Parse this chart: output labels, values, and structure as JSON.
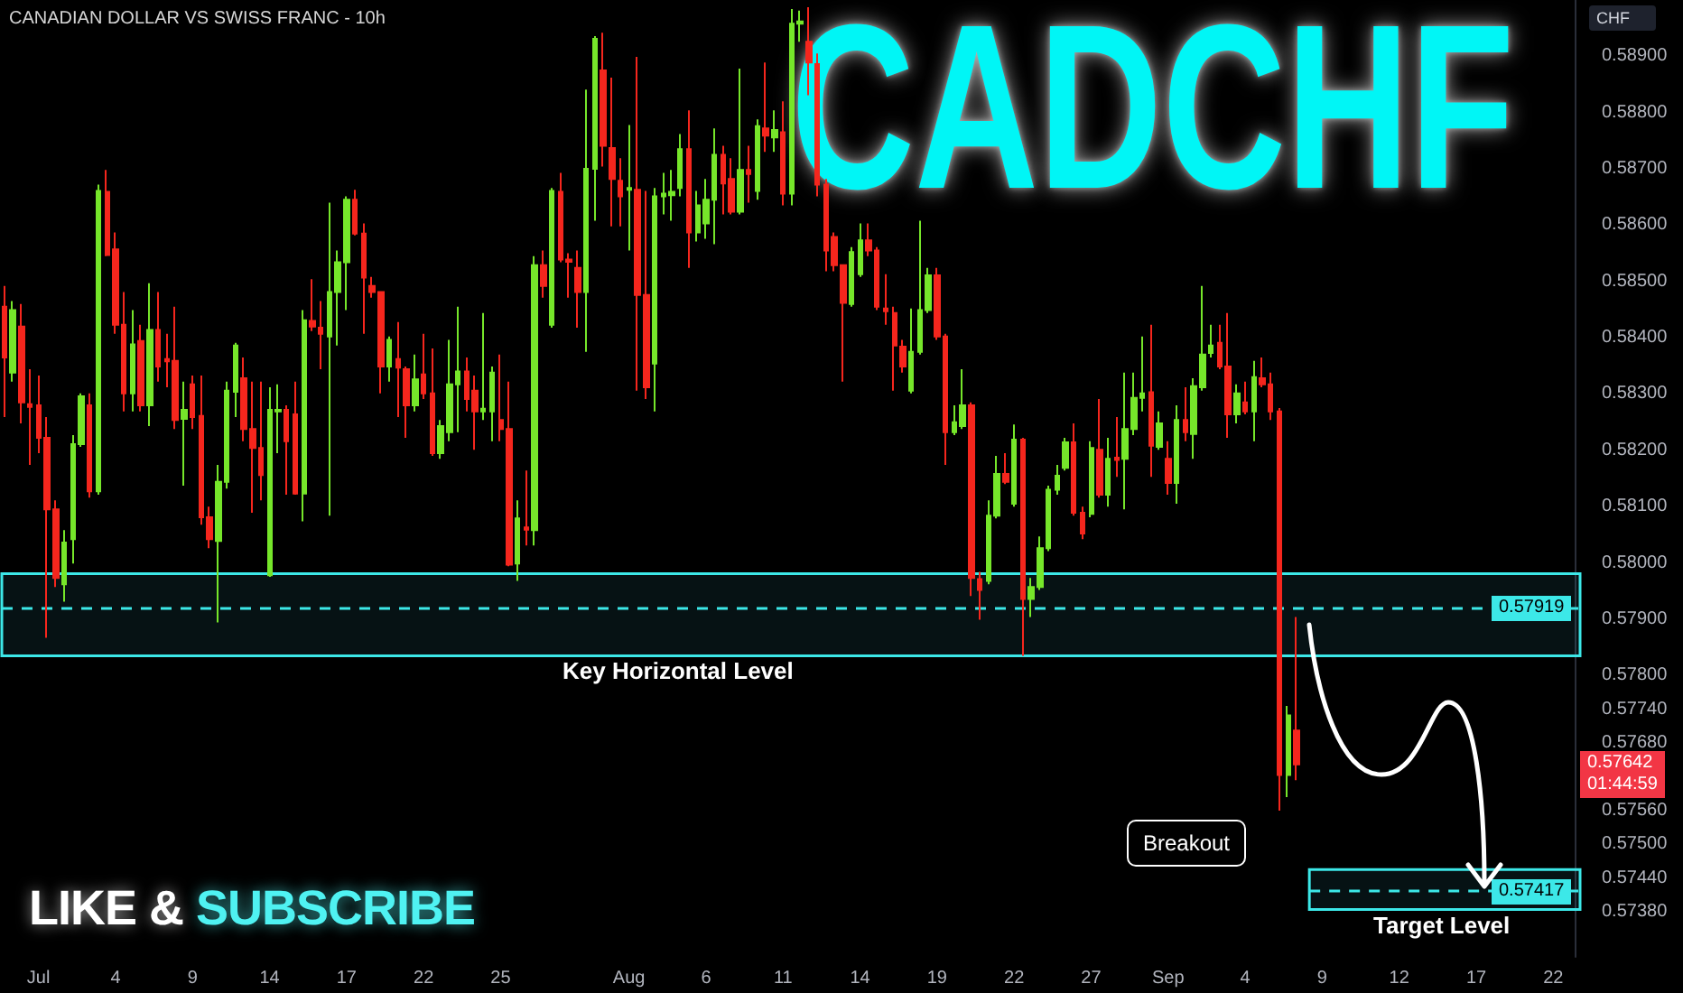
{
  "chart_data": {
    "type": "candlestick",
    "title": "CADCHF",
    "subtitle": "CANADIAN DOLLAR VS SWISS FRANC - 10h",
    "ylabel": "CHF",
    "colors": [
      "#f5261d",
      "#76e62a",
      "#f5261d",
      "#f5261d",
      "#f5261d",
      "#f5261d",
      "#f5261d",
      "#76e62a",
      "#76e62a",
      "#76e62a",
      "#f5261d",
      "#76e62a",
      "#f5261d",
      "#f5261d",
      "#f5261d",
      "#76e62a",
      "#f5261d",
      "#76e62a",
      "#f5261d",
      "#f5261d",
      "#f5261d",
      "#76e62a",
      "#f5261d",
      "#f5261d",
      "#f5261d",
      "#76e62a",
      "#76e62a",
      "#76e62a",
      "#f5261d",
      "#f5261d",
      "#f5261d",
      "#76e62a",
      "#76e62a",
      "#f5261d",
      "#f5261d",
      "#76e62a",
      "#f5261d",
      "#f5261d",
      "#76e62a",
      "#76e62a",
      "#76e62a",
      "#f5261d",
      "#f5261d",
      "#f5261d",
      "#f5261d",
      "#76e62a",
      "#f5261d",
      "#f5261d",
      "#76e62a",
      "#f5261d",
      "#f5261d",
      "#76e62a",
      "#76e62a",
      "#76e62a",
      "#f5261d",
      "#f5261d",
      "#76e62a",
      "#76e62a",
      "#f5261d",
      "#f5261d",
      "#76e62a",
      "#f5261d",
      "#76e62a",
      "#f5261d",
      "#76e62a",
      "#f5261d",
      "#f5261d",
      "#f5261d",
      "#76e62a",
      "#76e62a",
      "#f5261d",
      "#f5261d",
      "#f5261d",
      "#76e62a",
      "#f5261d",
      "#f5261d",
      "#76e62a",
      "#76e62a",
      "#76e62a",
      "#76e62a",
      "#f5261d",
      "#76e62a",
      "#76e62a",
      "#76e62a",
      "#f5261d",
      "#f5261d",
      "#76e62a",
      "#f5261d",
      "#76e62a",
      "#f5261d",
      "#76e62a",
      "#f5261d",
      "#76e62a",
      "#76e62a",
      "#f5261d",
      "#f5261d",
      "#f5261d",
      "#f5261d",
      "#f5261d",
      "#76e62a",
      "#76e62a",
      "#f5261d",
      "#f5261d",
      "#f5261d",
      "#f5261d",
      "#f5261d",
      "#76e62a",
      "#76e62a",
      "#76e62a",
      "#f5261d",
      "#f5261d",
      "#76e62a",
      "#76e62a",
      "#f5261d",
      "#f5261d",
      "#76e62a",
      "#76e62a",
      "#f5261d",
      "#76e62a",
      "#f5261d",
      "#76e62a",
      "#76e62a",
      "#76e62a",
      "#76e62a",
      "#76e62a",
      "#f5261d",
      "#f5261d",
      "#76e62a",
      "#f5261d",
      "#76e62a",
      "#f5261d",
      "#76e62a",
      "#76e62a",
      "#76e62a",
      "#f5261d",
      "#76e62a",
      "#f5261d",
      "#76e62a",
      "#f5261d",
      "#76e62a",
      "#76e62a",
      "#76e62a",
      "#f5261d",
      "#f5261d",
      "#76e62a",
      "#f5261d",
      "#76e62a",
      "#f5261d",
      "#f5261d",
      "#f5261d",
      "#76e62a",
      "#f5261d",
      null,
      null,
      null,
      null,
      null,
      null,
      null,
      null,
      null,
      null,
      null,
      null,
      null,
      null,
      null,
      null,
      null,
      null,
      null,
      null,
      null,
      null,
      null,
      null,
      null,
      null,
      null,
      null,
      null,
      null,
      null,
      null
    ],
    "grid": false,
    "ylim": [
      0.573,
      0.59
    ],
    "yticks": [
      {
        "value": 0.589,
        "label": "0.58900"
      },
      {
        "value": 0.588,
        "label": "0.58800"
      },
      {
        "value": 0.587,
        "label": "0.58700"
      },
      {
        "value": 0.586,
        "label": "0.58600"
      },
      {
        "value": 0.585,
        "label": "0.58500"
      },
      {
        "value": 0.584,
        "label": "0.58400"
      },
      {
        "value": 0.583,
        "label": "0.58300"
      },
      {
        "value": 0.582,
        "label": "0.58200"
      },
      {
        "value": 0.581,
        "label": "0.58100"
      },
      {
        "value": 0.58,
        "label": "0.58000"
      },
      {
        "value": 0.579,
        "label": "0.57900"
      },
      {
        "value": 0.578,
        "label": "0.57800"
      },
      {
        "value": 0.5774,
        "label": "0.57740"
      },
      {
        "value": 0.5768,
        "label": "0.57680"
      },
      {
        "value": 0.5756,
        "label": "0.57560"
      },
      {
        "value": 0.575,
        "label": "0.57500"
      },
      {
        "value": 0.5744,
        "label": "0.57440"
      },
      {
        "value": 0.5738,
        "label": "0.57380"
      }
    ],
    "categories": [
      null,
      null,
      null,
      null,
      "Jul",
      null,
      null,
      null,
      null,
      null,
      null,
      null,
      null,
      "4",
      null,
      null,
      null,
      null,
      null,
      null,
      null,
      null,
      "9",
      null,
      null,
      null,
      null,
      null,
      null,
      null,
      null,
      "14",
      null,
      null,
      null,
      null,
      null,
      null,
      null,
      null,
      "17",
      null,
      null,
      null,
      null,
      null,
      null,
      null,
      null,
      "22",
      null,
      null,
      null,
      null,
      null,
      null,
      null,
      null,
      "25",
      null,
      null,
      null,
      null,
      null,
      null,
      null,
      null,
      null,
      null,
      null,
      null,
      null,
      null,
      "Aug",
      null,
      null,
      null,
      null,
      null,
      null,
      null,
      null,
      "6",
      null,
      null,
      null,
      null,
      null,
      null,
      null,
      null,
      "11",
      null,
      null,
      null,
      null,
      null,
      null,
      null,
      null,
      "14",
      null,
      null,
      null,
      null,
      null,
      null,
      null,
      null,
      "19",
      null,
      null,
      null,
      null,
      null,
      null,
      null,
      null,
      "22",
      null,
      null,
      null,
      null,
      null,
      null,
      null,
      null,
      "27",
      null,
      null,
      null,
      null,
      null,
      null,
      null,
      null,
      "Sep",
      null,
      null,
      null,
      null,
      null,
      null,
      null,
      null,
      "4",
      null,
      null,
      null,
      null,
      null,
      null,
      null,
      null,
      "9",
      null,
      null,
      null,
      null,
      null,
      null,
      null,
      null,
      "12",
      null,
      null,
      null,
      null,
      null,
      null,
      null,
      null,
      "17",
      null,
      null,
      null,
      null,
      null,
      null,
      null,
      null,
      "22",
      null,
      null
    ],
    "ohlc": [
      [
        0.58455,
        0.58492,
        0.58259,
        0.58365
      ],
      [
        0.58338,
        0.58465,
        0.58322,
        0.58449
      ],
      [
        0.5842,
        0.5846,
        0.58248,
        0.58285
      ],
      [
        0.58282,
        0.58344,
        0.58174,
        0.58277
      ],
      [
        0.5828,
        0.58333,
        0.58195,
        0.58222
      ],
      [
        0.58222,
        0.58259,
        0.57867,
        0.58095
      ],
      [
        0.58095,
        0.58111,
        0.57957,
        0.57973
      ],
      [
        0.57962,
        0.58058,
        0.57931,
        0.58036
      ],
      [
        0.58042,
        0.58227,
        0.57999,
        0.58211
      ],
      [
        0.58211,
        0.58301,
        0.58206,
        0.58296
      ],
      [
        0.5828,
        0.58301,
        0.58116,
        0.58127
      ],
      [
        0.58127,
        0.58672,
        0.58121,
        0.58661
      ],
      [
        0.58659,
        0.58698,
        0.58545,
        0.58547
      ],
      [
        0.58557,
        0.58587,
        0.58407,
        0.58423
      ],
      [
        0.58423,
        0.58481,
        0.58269,
        0.58301
      ],
      [
        0.58301,
        0.58449,
        0.58269,
        0.58388
      ],
      [
        0.58394,
        0.58423,
        0.58269,
        0.5828
      ],
      [
        0.5828,
        0.58497,
        0.58243,
        0.58414
      ],
      [
        0.58414,
        0.58481,
        0.58322,
        0.58349
      ],
      [
        0.58362,
        0.58407,
        0.58312,
        0.58358
      ],
      [
        0.58359,
        0.58455,
        0.58238,
        0.58254
      ],
      [
        0.58256,
        0.58322,
        0.58137,
        0.58272
      ],
      [
        0.58317,
        0.58333,
        0.58238,
        0.58259
      ],
      [
        0.58261,
        0.58333,
        0.58068,
        0.58081
      ],
      [
        0.58081,
        0.581,
        0.58026,
        0.58042
      ],
      [
        0.58039,
        0.58174,
        0.57894,
        0.58144
      ],
      [
        0.58144,
        0.58322,
        0.58132,
        0.58306
      ],
      [
        0.58304,
        0.58391,
        0.58259,
        0.58386
      ],
      [
        0.58328,
        0.58365,
        0.58216,
        0.58238
      ],
      [
        0.58238,
        0.58322,
        0.58089,
        0.58204
      ],
      [
        0.58204,
        0.58322,
        0.58111,
        0.58156
      ],
      [
        0.57978,
        0.58312,
        0.57975,
        0.58272
      ],
      [
        0.58269,
        0.58317,
        0.58195,
        0.58272
      ],
      [
        0.58272,
        0.5828,
        0.58121,
        0.58216
      ],
      [
        0.58264,
        0.58322,
        0.58121,
        0.58123
      ],
      [
        0.58123,
        0.58449,
        0.58074,
        0.58431
      ],
      [
        0.5843,
        0.58504,
        0.58412,
        0.5842
      ],
      [
        0.58418,
        0.58465,
        0.58344,
        0.58407
      ],
      [
        0.58402,
        0.5864,
        0.58084,
        0.58481
      ],
      [
        0.58481,
        0.58555,
        0.58386,
        0.58534
      ],
      [
        0.58534,
        0.58651,
        0.58449,
        0.58645
      ],
      [
        0.58645,
        0.58663,
        0.58582,
        0.58585
      ],
      [
        0.58585,
        0.58603,
        0.58407,
        0.58507
      ],
      [
        0.58492,
        0.58508,
        0.58471,
        0.58481
      ],
      [
        0.58481,
        0.58481,
        0.58301,
        0.58349
      ],
      [
        0.58349,
        0.58402,
        0.58322,
        0.58396
      ],
      [
        0.58362,
        0.58428,
        0.58259,
        0.58347
      ],
      [
        0.58344,
        0.58349,
        0.58222,
        0.5828
      ],
      [
        0.5828,
        0.5837,
        0.58269,
        0.58326
      ],
      [
        0.58335,
        0.58407,
        0.58291,
        0.58301
      ],
      [
        0.58301,
        0.58381,
        0.5819,
        0.58195
      ],
      [
        0.58195,
        0.58254,
        0.58185,
        0.58243
      ],
      [
        0.58232,
        0.58396,
        0.58216,
        0.58317
      ],
      [
        0.58317,
        0.58455,
        0.58232,
        0.5834
      ],
      [
        0.5834,
        0.58365,
        0.58269,
        0.58291
      ],
      [
        0.58306,
        0.58333,
        0.58201,
        0.58269
      ],
      [
        0.58269,
        0.58444,
        0.58254,
        0.58274
      ],
      [
        0.58269,
        0.58349,
        0.58216,
        0.58338
      ],
      [
        0.58254,
        0.5837,
        0.58216,
        0.58238
      ],
      [
        0.58238,
        0.58322,
        0.57994,
        0.57997
      ],
      [
        0.57999,
        0.58111,
        0.57968,
        0.58079
      ],
      [
        0.58063,
        0.58164,
        0.58031,
        0.58059
      ],
      [
        0.58058,
        0.58545,
        0.58031,
        0.58529
      ],
      [
        0.58529,
        0.58555,
        0.58471,
        0.58492
      ],
      [
        0.58423,
        0.58666,
        0.58418,
        0.58661
      ],
      [
        0.58659,
        0.58693,
        0.58534,
        0.58539
      ],
      [
        0.58539,
        0.5855,
        0.58471,
        0.58535
      ],
      [
        0.58524,
        0.58555,
        0.58418,
        0.58481
      ],
      [
        0.58481,
        0.58841,
        0.58375,
        0.587
      ],
      [
        0.587,
        0.58936,
        0.58608,
        0.58931
      ],
      [
        0.58875,
        0.58942,
        0.58704,
        0.58741
      ],
      [
        0.58737,
        0.58862,
        0.58598,
        0.58682
      ],
      [
        0.58679,
        0.58719,
        0.58598,
        0.58651
      ],
      [
        0.58663,
        0.58778,
        0.58555,
        0.58666
      ],
      [
        0.58663,
        0.58899,
        0.58306,
        0.58476
      ],
      [
        0.58476,
        0.58661,
        0.58291,
        0.58312
      ],
      [
        0.58354,
        0.58666,
        0.58269,
        0.58651
      ],
      [
        0.58651,
        0.58693,
        0.58619,
        0.58656
      ],
      [
        0.58653,
        0.58698,
        0.58608,
        0.58659
      ],
      [
        0.58666,
        0.58762,
        0.58651,
        0.58735
      ],
      [
        0.58735,
        0.58804,
        0.58524,
        0.58587
      ],
      [
        0.58587,
        0.58661,
        0.58571,
        0.58635
      ],
      [
        0.58603,
        0.58682,
        0.58576,
        0.58645
      ],
      [
        0.58645,
        0.58772,
        0.58566,
        0.58725
      ],
      [
        0.58725,
        0.58741,
        0.58619,
        0.58674
      ],
      [
        0.58682,
        0.58719,
        0.58619,
        0.58624
      ],
      [
        0.58624,
        0.58878,
        0.58619,
        0.58698
      ],
      [
        0.58698,
        0.58741,
        0.5864,
        0.58691
      ],
      [
        0.58661,
        0.58788,
        0.58645,
        0.58776
      ],
      [
        0.58772,
        0.58889,
        0.5873,
        0.58759
      ],
      [
        0.58756,
        0.58804,
        0.5873,
        0.58769
      ],
      [
        0.58765,
        0.5882,
        0.58635,
        0.58656
      ],
      [
        0.58656,
        0.58984,
        0.58635,
        0.58958
      ],
      [
        0.58958,
        0.58981,
        0.58926,
        0.58962
      ],
      [
        0.58926,
        0.58987,
        0.58831,
        0.58889
      ],
      [
        0.58886,
        0.58905,
        0.58651,
        0.58672
      ],
      [
        0.58672,
        0.58682,
        0.58518,
        0.58555
      ],
      [
        0.58579,
        0.58587,
        0.58518,
        0.58529
      ],
      [
        0.58529,
        0.58529,
        0.58322,
        0.58462
      ],
      [
        0.5846,
        0.58561,
        0.58455,
        0.58552
      ],
      [
        0.58513,
        0.58603,
        0.58508,
        0.58573
      ],
      [
        0.58573,
        0.58603,
        0.58545,
        0.58555
      ],
      [
        0.58555,
        0.58561,
        0.58449,
        0.58455
      ],
      [
        0.58452,
        0.58513,
        0.58423,
        0.58447
      ],
      [
        0.58444,
        0.58455,
        0.58306,
        0.58386
      ],
      [
        0.58384,
        0.58396,
        0.58338,
        0.58349
      ],
      [
        0.58306,
        0.58452,
        0.58301,
        0.58375
      ],
      [
        0.58375,
        0.58608,
        0.5837,
        0.58449
      ],
      [
        0.58449,
        0.58524,
        0.58444,
        0.58511
      ],
      [
        0.58511,
        0.58524,
        0.58396,
        0.58402
      ],
      [
        0.58402,
        0.58407,
        0.58174,
        0.58232
      ],
      [
        0.58232,
        0.5828,
        0.58227,
        0.5825
      ],
      [
        0.58243,
        0.58344,
        0.58238,
        0.5828
      ],
      [
        0.5828,
        0.58285,
        0.57941,
        0.57973
      ],
      [
        0.57971,
        0.57984,
        0.57899,
        0.57952
      ],
      [
        0.57968,
        0.58111,
        0.57962,
        0.58084
      ],
      [
        0.58084,
        0.5819,
        0.58079,
        0.58158
      ],
      [
        0.58158,
        0.58195,
        0.5814,
        0.58144
      ],
      [
        0.58105,
        0.58246,
        0.581,
        0.58219
      ],
      [
        0.58219,
        0.58222,
        0.57835,
        0.57936
      ],
      [
        0.57936,
        0.57973,
        0.57904,
        0.57957
      ],
      [
        0.57957,
        0.58047,
        0.57952,
        0.58026
      ],
      [
        0.58026,
        0.58137,
        0.58021,
        0.5813
      ],
      [
        0.5813,
        0.58174,
        0.58121,
        0.58155
      ],
      [
        0.58169,
        0.58222,
        0.58164,
        0.58214
      ],
      [
        0.58214,
        0.58248,
        0.58084,
        0.58089
      ],
      [
        0.58089,
        0.581,
        0.58042,
        0.58052
      ],
      [
        0.58087,
        0.58216,
        0.58081,
        0.58204
      ],
      [
        0.58201,
        0.58291,
        0.58116,
        0.58121
      ],
      [
        0.58121,
        0.58222,
        0.581,
        0.58185
      ],
      [
        0.58187,
        0.58259,
        0.58153,
        0.58183
      ],
      [
        0.58185,
        0.58338,
        0.58095,
        0.58238
      ],
      [
        0.58238,
        0.58338,
        0.58227,
        0.58293
      ],
      [
        0.58293,
        0.58402,
        0.58269,
        0.58301
      ],
      [
        0.58303,
        0.58423,
        0.58153,
        0.58208
      ],
      [
        0.58206,
        0.58269,
        0.58201,
        0.58248
      ],
      [
        0.58185,
        0.58216,
        0.58121,
        0.58142
      ],
      [
        0.58142,
        0.5828,
        0.58105,
        0.58254
      ],
      [
        0.58254,
        0.58312,
        0.58216,
        0.58232
      ],
      [
        0.58229,
        0.58328,
        0.58185,
        0.58314
      ],
      [
        0.58312,
        0.58492,
        0.58306,
        0.5837
      ],
      [
        0.58373,
        0.58423,
        0.58365,
        0.58386
      ],
      [
        0.58391,
        0.58423,
        0.58344,
        0.58349
      ],
      [
        0.58349,
        0.58444,
        0.58222,
        0.58264
      ],
      [
        0.58264,
        0.58317,
        0.58248,
        0.58301
      ],
      [
        0.58285,
        0.58322,
        0.58264,
        0.58269
      ],
      [
        0.58269,
        0.58359,
        0.58216,
        0.5833
      ],
      [
        0.58328,
        0.58365,
        0.58312,
        0.58317
      ],
      [
        0.58317,
        0.58338,
        0.58254,
        0.58269
      ],
      [
        0.58269,
        0.58275,
        0.5756,
        0.57623
      ],
      [
        0.57623,
        0.57746,
        0.57584,
        0.57729
      ],
      [
        0.57702,
        0.57904,
        0.57614,
        0.57642
      ],
      null,
      null,
      null,
      null,
      null,
      null,
      null,
      null,
      null,
      null,
      null,
      null,
      null,
      null,
      null,
      null,
      null,
      null,
      null,
      null,
      null,
      null,
      null,
      null,
      null,
      null,
      null,
      null,
      null,
      null,
      null,
      null
    ],
    "ref_lines": [
      {
        "axis": "y",
        "value": 0.57919,
        "label": "0.57919",
        "color": "#3ce8e8",
        "line_style": "dashed"
      },
      {
        "axis": "y",
        "value": 0.57417,
        "label": "0.57417",
        "color": "#3ce8e8",
        "line_style": "dashed"
      }
    ],
    "bands": [
      {
        "axis": "y",
        "from": 0.57835,
        "to": 0.57981,
        "label": "Key Horizontal Level",
        "color": "#3ce8e8"
      },
      {
        "axis": "y",
        "from": 0.57384,
        "to": 0.57455,
        "label": "Target Level",
        "color": "#3ce8e8"
      }
    ],
    "annotations": [
      "LIKE &",
      "SUBSCRIBE",
      "Breakout",
      "0.57642",
      "01:44:59"
    ]
  }
}
